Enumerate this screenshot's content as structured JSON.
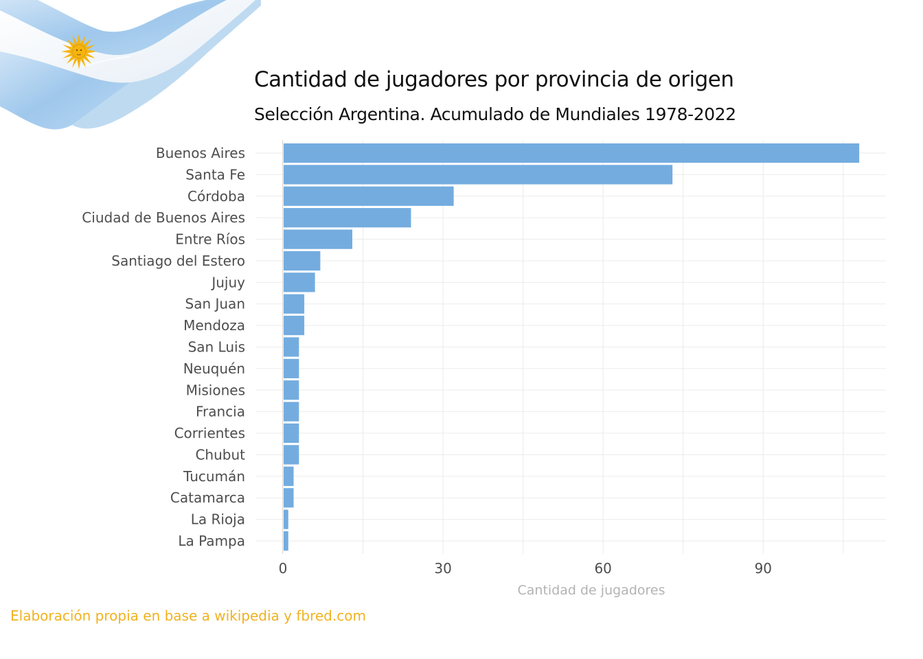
{
  "chart_data": {
    "type": "bar",
    "orientation": "horizontal",
    "title": "Cantidad de jugadores por provincia de origen",
    "subtitle": "Selección Argentina. Acumulado de Mundiales 1978-2022",
    "xlabel": "Cantidad de jugadores",
    "ylabel": "",
    "categories": [
      "Buenos Aires",
      "Santa Fe",
      "Córdoba",
      "Ciudad de Buenos Aires",
      "Entre Ríos",
      "Santiago del Estero",
      "Jujuy",
      "San Juan",
      "Mendoza",
      "San Luis",
      "Neuquén",
      "Misiones",
      "Francia",
      "Corrientes",
      "Chubut",
      "Tucumán",
      "Catamarca",
      "La Rioja",
      "La Pampa"
    ],
    "values": [
      108,
      73,
      32,
      24,
      13,
      7,
      6,
      4,
      4,
      3,
      3,
      3,
      3,
      3,
      3,
      2,
      2,
      1,
      1
    ],
    "xlim": [
      0,
      113
    ],
    "xticks": [
      "0",
      "30",
      "60",
      "90"
    ],
    "grid": true,
    "bar_color": "#74acdf",
    "caption": "Elaboración propia en base a wikipedia y fbred.com"
  },
  "colors": {
    "bar": "#74acdf",
    "grid": "#ebebeb",
    "axis_line": "#d9d9d9",
    "caption": "#f0b21f",
    "flag_blue": "#9fc8ec",
    "flag_white": "#ffffff",
    "sun": "#f6b40e"
  },
  "decoration": {
    "flag_icon": "argentina-flag-icon"
  }
}
